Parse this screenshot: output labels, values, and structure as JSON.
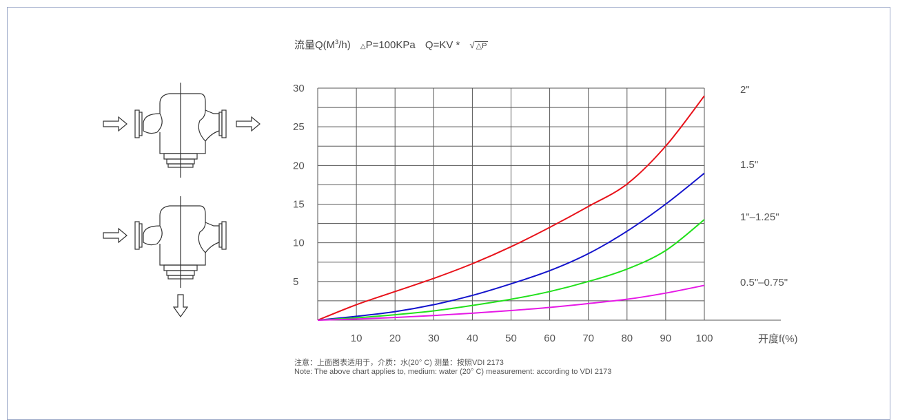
{
  "header": {
    "flow_label": "流量Q(M",
    "flow_sup": "3",
    "flow_tail": "/h)",
    "dp_symbol": "△",
    "dp_text": "P=100KPa",
    "q_text": "Q=KV *",
    "sqrt_inner": "△P"
  },
  "note": {
    "line_cn": "注意：上面图表适用于，介质：水(20°  C)  测量：按照VDI 2173",
    "line_en": "Note: The above chart applies to, medium: water (20°  C) measurement: according to VDI 2173"
  },
  "chart_data": {
    "type": "line",
    "title": "",
    "xlabel": "开度f(%)",
    "ylabel": "",
    "xlim": [
      0,
      100
    ],
    "ylim": [
      0,
      30
    ],
    "x_ticks": [
      10,
      20,
      30,
      40,
      50,
      60,
      70,
      80,
      90,
      100
    ],
    "y_ticks": [
      5,
      10,
      15,
      20,
      25,
      30
    ],
    "grid": true,
    "x": [
      0,
      10,
      20,
      30,
      40,
      50,
      60,
      70,
      80,
      90,
      100
    ],
    "series": [
      {
        "name": "2\"",
        "color": "#e8131b",
        "values": [
          0,
          2.0,
          3.7,
          5.4,
          7.3,
          9.5,
          12.0,
          14.7,
          17.6,
          22.5,
          29.0
        ]
      },
      {
        "name": "1.5\"",
        "color": "#1414cc",
        "values": [
          0,
          0.5,
          1.1,
          2.0,
          3.2,
          4.7,
          6.4,
          8.6,
          11.5,
          15.0,
          19.0
        ]
      },
      {
        "name": "1\"–1.25\"",
        "color": "#22e01c",
        "values": [
          0,
          0.3,
          0.7,
          1.2,
          1.9,
          2.7,
          3.7,
          5.0,
          6.6,
          9.0,
          13.0
        ]
      },
      {
        "name": "0.5\"–0.75\"",
        "color": "#e619e6",
        "values": [
          0,
          0.15,
          0.35,
          0.6,
          0.9,
          1.25,
          1.65,
          2.15,
          2.7,
          3.5,
          4.5
        ]
      }
    ]
  },
  "diagram": {
    "top_valve": "valve-straight-through",
    "bottom_valve": "valve-three-way",
    "arrow_icon": "outline-arrow"
  }
}
